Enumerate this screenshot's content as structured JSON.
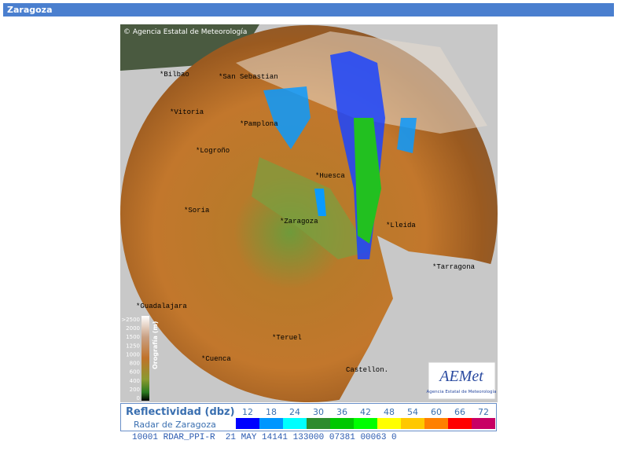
{
  "header": {
    "title": "Zaragoza"
  },
  "map": {
    "credit": "Agencia Estatal de Meteorología",
    "cities": [
      "Bilbao",
      "San Sebastian",
      "Vitoria",
      "Pamplona",
      "Logroño",
      "Huesca",
      "Soria",
      "Zaragoza",
      "Lleida",
      "Tarragona",
      "Guadalajara",
      "Teruel",
      "Cuenca",
      "Castellon."
    ],
    "orography": {
      "title": "Orografía (m)",
      "labels": [
        ">2500",
        "2000",
        "1500",
        "1250",
        "1000",
        "800",
        "600",
        "400",
        "200",
        "0"
      ]
    },
    "logo": {
      "name": "AEMet",
      "subtitle": "Agencia Estatal de Meteorología"
    }
  },
  "legend": {
    "title": "Reflectividad (dbz)",
    "subtitle": "Radar de Zaragoza",
    "items": [
      {
        "label": "12",
        "color": "#0000ff"
      },
      {
        "label": "18",
        "color": "#0096ff"
      },
      {
        "label": "24",
        "color": "#00ffff"
      },
      {
        "label": "30",
        "color": "#2e8b2e"
      },
      {
        "label": "36",
        "color": "#00c800"
      },
      {
        "label": "42",
        "color": "#00ff00"
      },
      {
        "label": "48",
        "color": "#ffff00"
      },
      {
        "label": "54",
        "color": "#ffc800"
      },
      {
        "label": "60",
        "color": "#ff8000"
      },
      {
        "label": "66",
        "color": "#ff0000"
      },
      {
        "label": "72",
        "color": "#c80064"
      }
    ]
  },
  "footer": {
    "text": "10001 RDAR_PPI-R  21 MAY 14141 133000 07381 00063 0"
  }
}
